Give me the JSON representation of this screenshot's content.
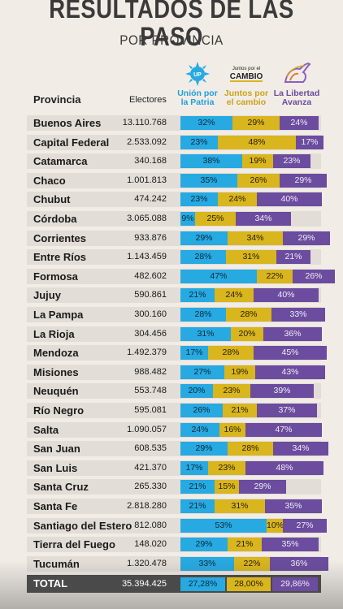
{
  "header": {
    "title": "RESULTADOS DE LAS PASO",
    "subtitle": "POR PROVINCIA"
  },
  "parties": [
    {
      "key": "up",
      "name_line1": "Unión por",
      "name_line2": "la Patria",
      "color": "#27a9e1",
      "logo": "sun-logo-icon",
      "logo_text": ""
    },
    {
      "key": "jx",
      "name_line1": "Juntos por",
      "name_line2": "el cambio",
      "color": "#d9b51e",
      "logo": "juntos-logo-icon",
      "logo_text": "Juntos por el",
      "logo_word": "CAMBIO"
    },
    {
      "key": "ll",
      "name_line1": "La Libertad",
      "name_line2": "Avanza",
      "color": "#6b4c9e",
      "logo": "lion-logo-icon",
      "logo_text": ""
    }
  ],
  "table": {
    "col_provincia": "Provincia",
    "col_electores": "Electores"
  },
  "chart_data": {
    "type": "bar",
    "stacked": true,
    "orientation": "horizontal",
    "series_keys": [
      "up",
      "jx",
      "ll"
    ],
    "rows": [
      {
        "provincia": "Buenos Aires",
        "electores": "13.110.768",
        "up": 32,
        "jx": 29,
        "ll": 24
      },
      {
        "provincia": "Capital Federal",
        "electores": "2.533.092",
        "up": 23,
        "jx": 48,
        "ll": 17
      },
      {
        "provincia": "Catamarca",
        "electores": "340.168",
        "up": 38,
        "jx": 19,
        "ll": 23
      },
      {
        "provincia": "Chaco",
        "electores": "1.001.813",
        "up": 35,
        "jx": 26,
        "ll": 29
      },
      {
        "provincia": "Chubut",
        "electores": "474.242",
        "up": 23,
        "jx": 24,
        "ll": 40
      },
      {
        "provincia": "Córdoba",
        "electores": "3.065.088",
        "up": 9,
        "jx": 25,
        "ll": 34
      },
      {
        "provincia": "Corrientes",
        "electores": "933.876",
        "up": 29,
        "jx": 34,
        "ll": 29
      },
      {
        "provincia": "Entre Ríos",
        "electores": "1.143.459",
        "up": 28,
        "jx": 31,
        "ll": 21
      },
      {
        "provincia": "Formosa",
        "electores": "482.602",
        "up": 47,
        "jx": 22,
        "ll": 26
      },
      {
        "provincia": "Jujuy",
        "electores": "590.861",
        "up": 21,
        "jx": 24,
        "ll": 40
      },
      {
        "provincia": "La Pampa",
        "electores": "300.160",
        "up": 28,
        "jx": 28,
        "ll": 33
      },
      {
        "provincia": "La Rioja",
        "electores": "304.456",
        "up": 31,
        "jx": 20,
        "ll": 36
      },
      {
        "provincia": "Mendoza",
        "electores": "1.492.379",
        "up": 17,
        "jx": 28,
        "ll": 45
      },
      {
        "provincia": "Misiones",
        "electores": "988.482",
        "up": 27,
        "jx": 19,
        "ll": 43
      },
      {
        "provincia": "Neuquén",
        "electores": "553.748",
        "up": 20,
        "jx": 23,
        "ll": 39
      },
      {
        "provincia": "Río Negro",
        "electores": "595.081",
        "up": 26,
        "jx": 21,
        "ll": 37
      },
      {
        "provincia": "Salta",
        "electores": "1.090.057",
        "up": 24,
        "jx": 16,
        "ll": 47
      },
      {
        "provincia": "San Juan",
        "electores": "608.535",
        "up": 29,
        "jx": 28,
        "ll": 34
      },
      {
        "provincia": "San Luis",
        "electores": "421.370",
        "up": 17,
        "jx": 23,
        "ll": 48
      },
      {
        "provincia": "Santa Cruz",
        "electores": "265.330",
        "up": 21,
        "jx": 15,
        "ll": 29
      },
      {
        "provincia": "Santa Fe",
        "electores": "2.818.280",
        "up": 21,
        "jx": 31,
        "ll": 35
      },
      {
        "provincia": "Santiago del Estero",
        "electores": "812.080",
        "up": 53,
        "jx": 10,
        "ll": 27
      },
      {
        "provincia": "Tierra del Fuego",
        "electores": "148.020",
        "up": 29,
        "jx": 21,
        "ll": 35
      },
      {
        "provincia": "Tucumán",
        "electores": "1.320.478",
        "up": 33,
        "jx": 22,
        "ll": 36
      }
    ],
    "total": {
      "label": "TOTAL",
      "electores": "35.394.425",
      "up": "27,28%",
      "jx": "28,00%",
      "ll": "29,86%"
    }
  }
}
